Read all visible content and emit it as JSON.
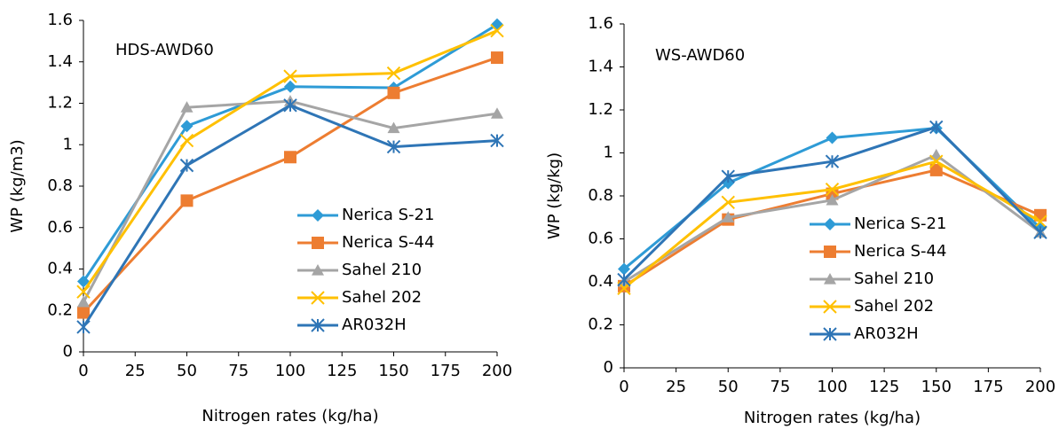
{
  "chart_data": [
    {
      "type": "line",
      "annotation": "HDS-AWD60",
      "xlabel": "Nitrogen rates (kg/ha)",
      "ylabel": "WP (kg/m3)",
      "x": [
        0,
        50,
        100,
        150,
        200
      ],
      "xlim": [
        0,
        200
      ],
      "xticks": [
        0,
        25,
        50,
        75,
        100,
        125,
        150,
        175,
        200
      ],
      "ylim": [
        0,
        1.6
      ],
      "yticks": [
        0,
        0.2,
        0.4,
        0.6,
        0.8,
        1,
        1.2,
        1.4,
        1.6
      ],
      "legend": "lower right",
      "series": [
        {
          "name": "Nerica S-21",
          "color": "#2e9bd6",
          "marker": "diamond",
          "values": [
            0.34,
            1.09,
            1.28,
            1.275,
            1.58
          ]
        },
        {
          "name": "Nerica S-44",
          "color": "#ed7d31",
          "marker": "square",
          "values": [
            0.19,
            0.73,
            0.94,
            1.25,
            1.42
          ]
        },
        {
          "name": "Sahel 210",
          "color": "#a5a5a5",
          "marker": "triangle",
          "values": [
            0.24,
            1.18,
            1.21,
            1.08,
            1.15
          ]
        },
        {
          "name": "Sahel 202",
          "color": "#ffc000",
          "marker": "x",
          "values": [
            0.29,
            1.02,
            1.33,
            1.345,
            1.55
          ]
        },
        {
          "name": "AR032H",
          "color": "#2e75b6",
          "marker": "star",
          "values": [
            0.12,
            0.9,
            1.19,
            0.99,
            1.02
          ]
        }
      ]
    },
    {
      "type": "line",
      "annotation": "WS-AWD60",
      "xlabel": "Nitrogen rates (kg/ha)",
      "ylabel": "WP (kg/kg)",
      "x": [
        0,
        50,
        100,
        150,
        200
      ],
      "xlim": [
        0,
        200
      ],
      "xticks": [
        0,
        25,
        50,
        75,
        100,
        125,
        150,
        175,
        200
      ],
      "ylim": [
        0,
        1.6
      ],
      "yticks": [
        0,
        0.2,
        0.4,
        0.6,
        0.8,
        1,
        1.2,
        1.4,
        1.6
      ],
      "legend": "lower right",
      "series": [
        {
          "name": "Nerica S-21",
          "color": "#2e9bd6",
          "marker": "diamond",
          "values": [
            0.46,
            0.86,
            1.07,
            1.115,
            0.65
          ]
        },
        {
          "name": "Nerica S-44",
          "color": "#ed7d31",
          "marker": "square",
          "values": [
            0.38,
            0.69,
            0.81,
            0.92,
            0.71
          ]
        },
        {
          "name": "Sahel 210",
          "color": "#a5a5a5",
          "marker": "triangle",
          "values": [
            0.4,
            0.7,
            0.78,
            0.99,
            0.63
          ]
        },
        {
          "name": "Sahel 202",
          "color": "#ffc000",
          "marker": "x",
          "values": [
            0.37,
            0.77,
            0.83,
            0.96,
            0.68
          ]
        },
        {
          "name": "AR032H",
          "color": "#2e75b6",
          "marker": "star",
          "values": [
            0.41,
            0.89,
            0.96,
            1.12,
            0.63
          ]
        }
      ]
    }
  ]
}
